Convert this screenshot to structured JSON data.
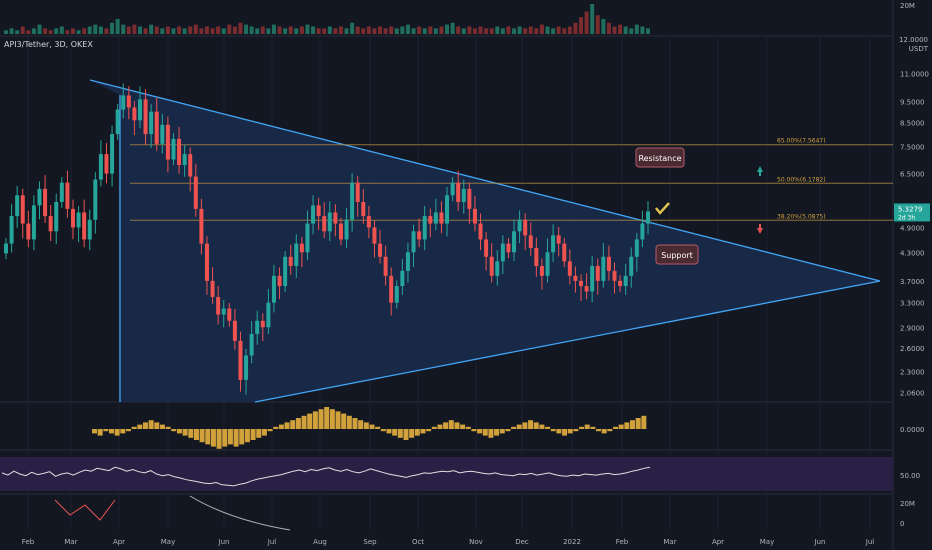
{
  "symbol_label": "API3/Tether, 3D, OKEX",
  "price_currency": "USDT",
  "top_scale_value": "12.0000",
  "colors": {
    "background": "#131722",
    "up": "#26a69a",
    "down": "#ef5350",
    "triangle_fill": "#1a2c4d",
    "triangle_line": "#42a5f5",
    "fib_line": "#b08a3e",
    "rsi_band": "#2a1f45",
    "macd_hist": "#d1a13b"
  },
  "chart_data": {
    "type": "candlestick",
    "title": "API3/Tether, 3D, OKEX",
    "y_axis_labels": [
      "11.0000",
      "9.5000",
      "8.5000",
      "7.5000",
      "6.5000",
      "5.5000",
      "4.9000",
      "4.3000",
      "3.7000",
      "3.3000",
      "2.9000",
      "2.6000",
      "2.3000",
      "2.0600"
    ],
    "x_axis_labels": [
      "Feb",
      "Mar",
      "Apr",
      "May",
      "Jun",
      "Jul",
      "Aug",
      "Sep",
      "Oct",
      "Nov",
      "Dec",
      "2022",
      "Feb",
      "Mar",
      "Apr",
      "May",
      "Jun",
      "Jul"
    ],
    "current_price": "5.3279",
    "countdown": "2d 3h",
    "fib_levels": [
      {
        "label": "65.00%(7.5647)",
        "value": 7.5647
      },
      {
        "label": "50.00%(6.1782)",
        "value": 6.1782
      },
      {
        "label": "38.20%(5.0875)",
        "value": 5.0875
      }
    ],
    "annotations": [
      "Resistance",
      "Support"
    ],
    "volume_axis": "20M",
    "macd_axis": "0.0000",
    "rsi_axis": "50.00",
    "bottom_axis": [
      "20M",
      "0"
    ],
    "closes": [
      4.5,
      5.2,
      5.8,
      5.0,
      4.6,
      5.5,
      6.0,
      5.2,
      4.8,
      5.6,
      6.2,
      5.4,
      4.9,
      5.3,
      4.6,
      5.1,
      6.3,
      7.2,
      6.5,
      8.0,
      9.1,
      9.8,
      9.2,
      8.6,
      9.6,
      8.0,
      9.0,
      7.6,
      8.4,
      7.0,
      7.8,
      6.8,
      7.2,
      6.4,
      5.4,
      4.5,
      3.7,
      3.4,
      3.1,
      3.2,
      3.0,
      2.7,
      2.2,
      2.5,
      2.8,
      3.0,
      2.9,
      3.3,
      3.8,
      3.6,
      4.2,
      4.0,
      4.5,
      4.3,
      5.0,
      5.5,
      5.2,
      4.8,
      5.3,
      5.0,
      4.6,
      5.1,
      6.2,
      5.6,
      5.2,
      4.9,
      4.5,
      4.2,
      3.8,
      3.3,
      3.6,
      3.9,
      4.3,
      4.8,
      4.6,
      5.2,
      5.0,
      5.3,
      5.0,
      5.8,
      6.2,
      5.6,
      6.0,
      5.4,
      5.0,
      4.6,
      4.2,
      3.8,
      4.1,
      4.5,
      4.3,
      4.8,
      5.1,
      4.7,
      4.4,
      4.0,
      3.8,
      4.3,
      4.7,
      4.5,
      4.1,
      3.8,
      3.7,
      3.6,
      3.5,
      4.0,
      3.7,
      4.2,
      3.9,
      3.7,
      3.6,
      3.8,
      4.2,
      4.6,
      5.0,
      5.33
    ]
  },
  "volume_data": [
    2,
    3,
    2,
    4,
    2,
    3,
    5,
    3,
    2,
    3,
    4,
    2,
    3,
    2,
    3,
    4,
    5,
    4,
    3,
    6,
    8,
    5,
    4,
    5,
    4,
    3,
    5,
    4,
    3,
    4,
    3,
    4,
    3,
    4,
    5,
    3,
    4,
    3,
    4,
    3,
    5,
    4,
    6,
    5,
    4,
    3,
    4,
    3,
    5,
    4,
    3,
    4,
    3,
    4,
    5,
    4,
    3,
    3,
    4,
    3,
    4,
    3,
    6,
    4,
    3,
    4,
    3,
    4,
    3,
    4,
    3,
    4,
    5,
    3,
    4,
    3,
    4,
    3,
    4,
    5,
    6,
    4,
    3,
    4,
    3,
    4,
    3,
    3,
    4,
    3,
    4,
    3,
    4,
    3,
    4,
    3,
    5,
    4,
    3,
    4,
    3,
    4,
    6,
    9,
    12,
    16,
    10,
    8,
    6,
    4,
    5,
    4,
    3,
    5,
    4,
    3
  ],
  "rsi_data": [
    52,
    48,
    55,
    50,
    47,
    53,
    49,
    51,
    54,
    46,
    50,
    52,
    48,
    53,
    57,
    55,
    60,
    58,
    56,
    62,
    59,
    55,
    58,
    54,
    52,
    56,
    50,
    47,
    49,
    45,
    43,
    40,
    38,
    36,
    34,
    33,
    35,
    31,
    30,
    29,
    32,
    34,
    38,
    41,
    43,
    45,
    47,
    49,
    52,
    55,
    57,
    54,
    58,
    56,
    59,
    61,
    57,
    55,
    58,
    54,
    52,
    55,
    59,
    56,
    53,
    50,
    48,
    46,
    44,
    47,
    49,
    52,
    51,
    53,
    55,
    54,
    56,
    52,
    54,
    55,
    53,
    51,
    50,
    52,
    49,
    48,
    47,
    50,
    49,
    51,
    48,
    50,
    52,
    49,
    47,
    46,
    48,
    47,
    50,
    49,
    48,
    50,
    51,
    49,
    50,
    52,
    55,
    57,
    60,
    62
  ],
  "macd_hist": [
    -2,
    -3,
    -1,
    -2,
    -3,
    -2,
    -1,
    1,
    2,
    3,
    4,
    3,
    2,
    1,
    -1,
    -2,
    -3,
    -4,
    -5,
    -6,
    -7,
    -8,
    -9,
    -8,
    -7,
    -8,
    -7,
    -6,
    -5,
    -4,
    -3,
    -1,
    1,
    2,
    3,
    4,
    5,
    6,
    7,
    8,
    9,
    10,
    9,
    8,
    7,
    6,
    5,
    4,
    3,
    2,
    1,
    -1,
    -2,
    -3,
    -4,
    -5,
    -4,
    -3,
    -2,
    -1,
    1,
    2,
    3,
    4,
    3,
    2,
    1,
    -1,
    -2,
    -3,
    -4,
    -3,
    -2,
    -1,
    1,
    2,
    3,
    4,
    3,
    2,
    1,
    -1,
    -2,
    -3,
    -2,
    -1,
    1,
    2,
    1,
    -1,
    -2,
    -1,
    1,
    2,
    3,
    4,
    5,
    6
  ]
}
